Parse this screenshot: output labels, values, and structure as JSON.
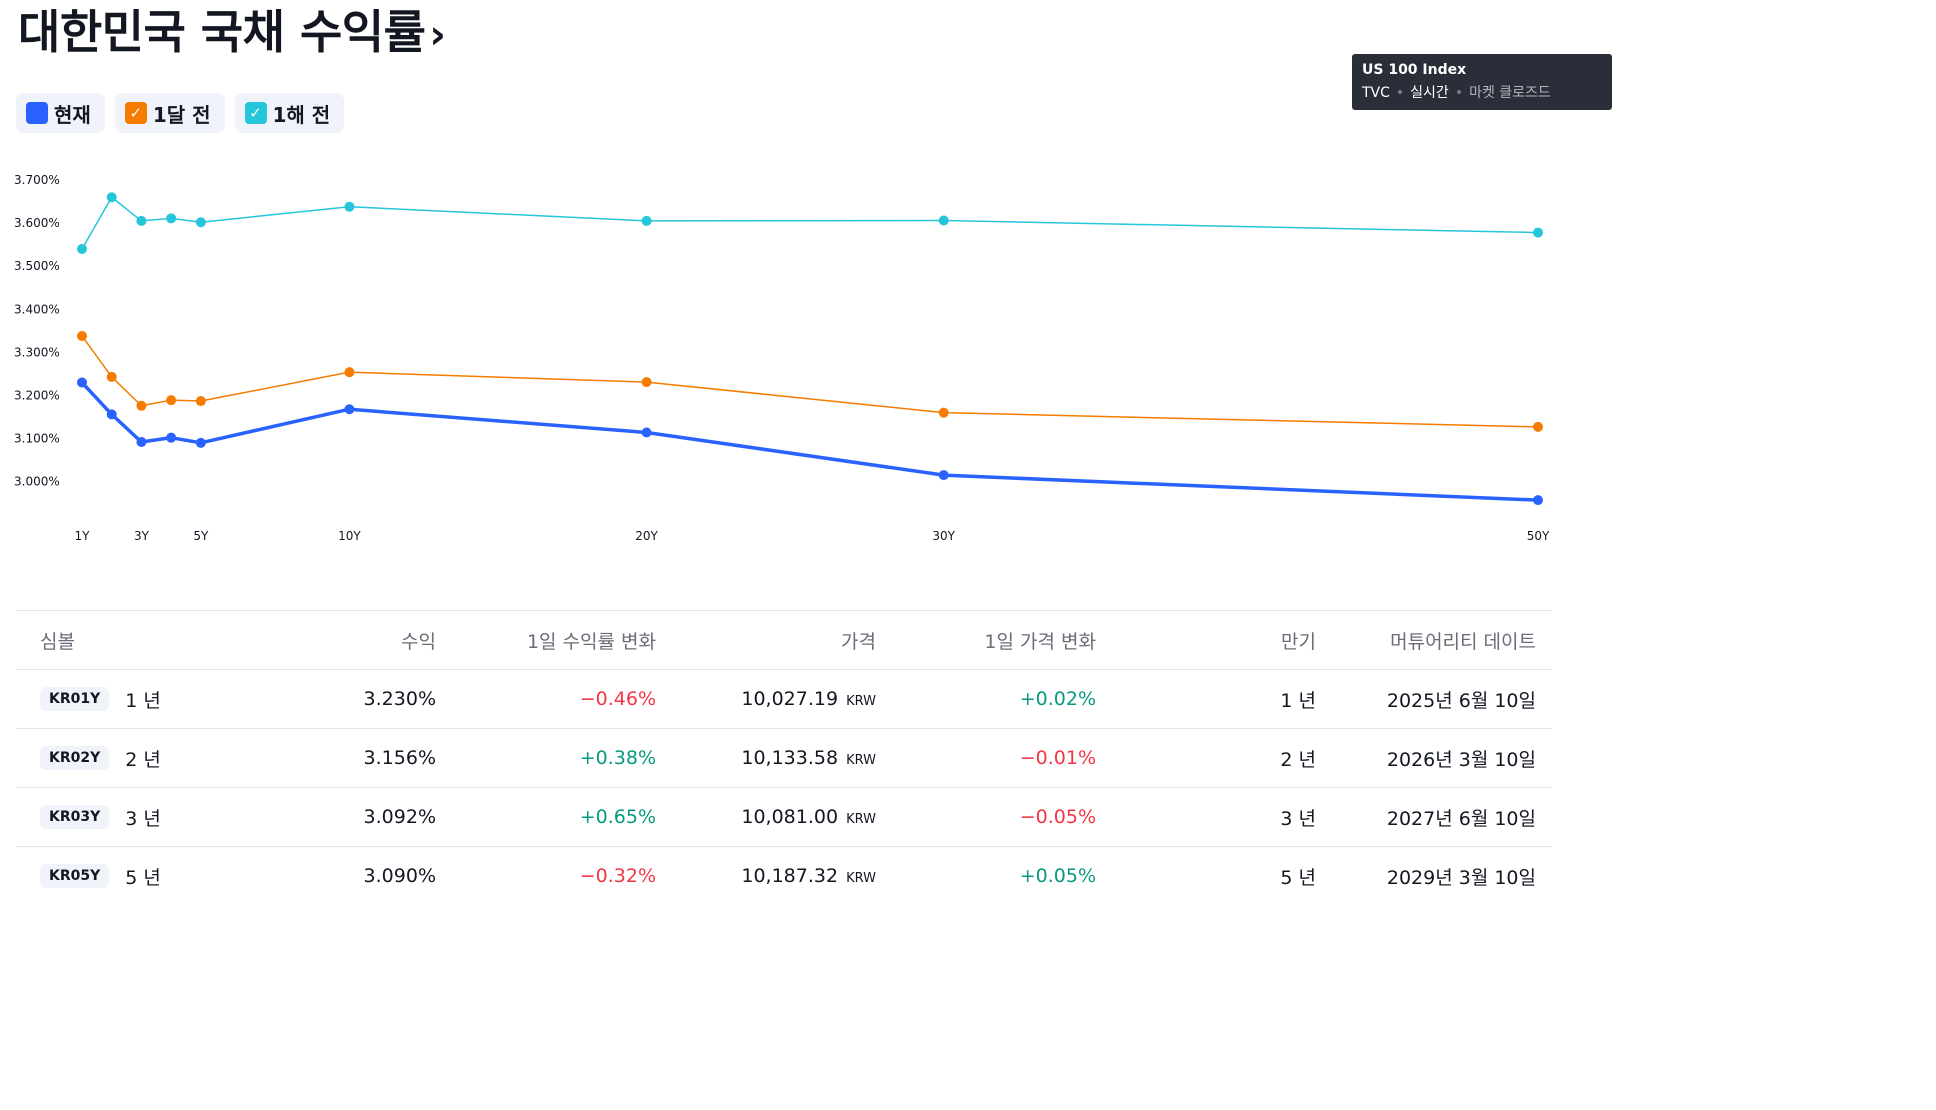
{
  "page": {
    "title": "대한민국 국채 수익률",
    "title_chevron": "›"
  },
  "legend": [
    {
      "label": "현재",
      "color": "#2962ff",
      "checked": true
    },
    {
      "label": "1달 전",
      "color": "#f57c00",
      "checked": true
    },
    {
      "label": "1해 전",
      "color": "#26c6da",
      "checked": true
    }
  ],
  "tooltip": {
    "name": "US 100 Index",
    "source": "TVC",
    "realtime": "실시간",
    "status": "마켓 클로즈드"
  },
  "chart_data": {
    "type": "line",
    "x": [
      1,
      2,
      3,
      4,
      5,
      10,
      20,
      30,
      50
    ],
    "x_tick_labels": [
      "1Y",
      "3Y",
      "5Y",
      "10Y",
      "20Y",
      "30Y",
      "50Y"
    ],
    "x_tick_values": [
      1,
      3,
      5,
      10,
      20,
      30,
      50
    ],
    "y_tick_labels": [
      "3.000%",
      "3.100%",
      "3.200%",
      "3.300%",
      "3.400%",
      "3.500%",
      "3.600%",
      "3.700%"
    ],
    "ylim": [
      2.955,
      3.7
    ],
    "series": [
      {
        "name": "현재",
        "color": "#2962ff",
        "values": [
          3.23,
          3.156,
          3.092,
          3.102,
          3.09,
          3.168,
          3.114,
          3.015,
          2.957
        ]
      },
      {
        "name": "1달 전",
        "color": "#f57c00",
        "values": [
          3.338,
          3.243,
          3.176,
          3.189,
          3.187,
          3.254,
          3.231,
          3.16,
          3.127
        ]
      },
      {
        "name": "1해 전",
        "color": "#26c6da",
        "values": [
          3.54,
          3.66,
          3.605,
          3.611,
          3.602,
          3.638,
          3.605,
          3.606,
          3.578
        ]
      }
    ]
  },
  "table": {
    "headers": [
      "심볼",
      "수익",
      "1일 수익률 변화",
      "가격",
      "1일 가격 변화",
      "만기",
      "머튜어리티 데이트"
    ],
    "rows": [
      {
        "symbol": "KR01Y",
        "name": "1 년",
        "yield": "3.230%",
        "yield_change": "−0.46%",
        "yield_change_dir": "neg",
        "price": "10,027.19",
        "unit": "KRW",
        "price_change": "+0.02%",
        "price_change_dir": "pos",
        "term": "1 년",
        "maturity": "2025년 6월 10일"
      },
      {
        "symbol": "KR02Y",
        "name": "2 년",
        "yield": "3.156%",
        "yield_change": "+0.38%",
        "yield_change_dir": "pos",
        "price": "10,133.58",
        "unit": "KRW",
        "price_change": "−0.01%",
        "price_change_dir": "neg",
        "term": "2 년",
        "maturity": "2026년 3월 10일"
      },
      {
        "symbol": "KR03Y",
        "name": "3 년",
        "yield": "3.092%",
        "yield_change": "+0.65%",
        "yield_change_dir": "pos",
        "price": "10,081.00",
        "unit": "KRW",
        "price_change": "−0.05%",
        "price_change_dir": "neg",
        "term": "3 년",
        "maturity": "2027년 6월 10일"
      },
      {
        "symbol": "KR05Y",
        "name": "5 년",
        "yield": "3.090%",
        "yield_change": "−0.32%",
        "yield_change_dir": "neg",
        "price": "10,187.32",
        "unit": "KRW",
        "price_change": "+0.05%",
        "price_change_dir": "pos",
        "term": "5 년",
        "maturity": "2029년 3월 10일"
      }
    ]
  }
}
